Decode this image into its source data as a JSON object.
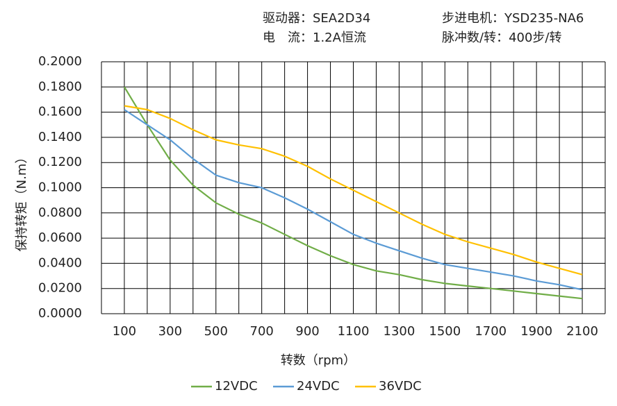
{
  "chart_data": {
    "type": "line",
    "header": [
      "驱动器：SEA2D34",
      "电　流：1.2A恒流",
      "步进电机：YSD235-NA6",
      "脉冲数/转：400步/转"
    ],
    "x_label": "转数（rpm）",
    "y_label": "保持转矩（N.m）",
    "x": [
      100,
      200,
      300,
      400,
      500,
      600,
      700,
      800,
      900,
      1000,
      1100,
      1200,
      1300,
      1400,
      1500,
      1600,
      1700,
      1800,
      1900,
      2000,
      2100
    ],
    "series": [
      {
        "name": "12VDC",
        "color": "#70ad47",
        "values": [
          0.18,
          0.15,
          0.122,
          0.102,
          0.088,
          0.079,
          0.072,
          0.063,
          0.054,
          0.046,
          0.039,
          0.034,
          0.031,
          0.027,
          0.024,
          0.022,
          0.02,
          0.018,
          0.016,
          0.014,
          0.012
        ]
      },
      {
        "name": "24VDC",
        "color": "#5b9bd5",
        "values": [
          0.162,
          0.15,
          0.138,
          0.123,
          0.11,
          0.104,
          0.1,
          0.092,
          0.083,
          0.073,
          0.063,
          0.056,
          0.05,
          0.044,
          0.039,
          0.036,
          0.033,
          0.03,
          0.026,
          0.023,
          0.019
        ]
      },
      {
        "name": "36VDC",
        "color": "#ffc000",
        "values": [
          0.165,
          0.162,
          0.155,
          0.146,
          0.138,
          0.134,
          0.131,
          0.125,
          0.117,
          0.107,
          0.098,
          0.089,
          0.08,
          0.071,
          0.063,
          0.057,
          0.052,
          0.047,
          0.041,
          0.036,
          0.031
        ]
      }
    ],
    "xlim": [
      0,
      2200
    ],
    "xticks": [
      100,
      300,
      500,
      700,
      900,
      1100,
      1300,
      1500,
      1700,
      1900,
      2100
    ],
    "xgrid": [
      0,
      200,
      400,
      600,
      800,
      1000,
      1200,
      1400,
      1600,
      1800,
      2000,
      2200
    ],
    "ylim": [
      0,
      0.2
    ],
    "yticks": [
      {
        "value": 0,
        "label": "0.0000"
      },
      {
        "value": 0.02,
        "label": "0.0200"
      },
      {
        "value": 0.04,
        "label": "0.0400"
      },
      {
        "value": 0.06,
        "label": "0.0600"
      },
      {
        "value": 0.08,
        "label": "0.0800"
      },
      {
        "value": 0.1,
        "label": "0.1000"
      },
      {
        "value": 0.12,
        "label": "0.1200"
      },
      {
        "value": 0.14,
        "label": "0.1400"
      },
      {
        "value": 0.16,
        "label": "0.1600"
      },
      {
        "value": 0.18,
        "label": "0.1800"
      },
      {
        "value": 0.2,
        "label": "0.2000"
      }
    ],
    "grid": true,
    "legend": "bottom"
  }
}
